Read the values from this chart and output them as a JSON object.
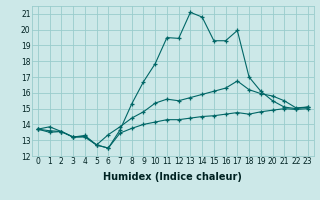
{
  "xlabel": "Humidex (Indice chaleur)",
  "xlim": [
    -0.5,
    23.5
  ],
  "ylim": [
    12,
    21.5
  ],
  "yticks": [
    12,
    13,
    14,
    15,
    16,
    17,
    18,
    19,
    20,
    21
  ],
  "xticks": [
    0,
    1,
    2,
    3,
    4,
    5,
    6,
    7,
    8,
    9,
    10,
    11,
    12,
    13,
    14,
    15,
    16,
    17,
    18,
    19,
    20,
    21,
    22,
    23
  ],
  "bg_color": "#cce8e8",
  "grid_color": "#99cccc",
  "line_color": "#006666",
  "max_line": [
    13.7,
    13.85,
    13.55,
    13.2,
    13.3,
    12.7,
    12.5,
    13.65,
    15.3,
    16.7,
    17.85,
    19.5,
    19.45,
    21.1,
    20.8,
    19.3,
    19.3,
    19.95,
    17.0,
    16.1,
    15.5,
    15.1,
    15.0,
    15.1
  ],
  "avg_line": [
    13.7,
    13.6,
    13.55,
    13.2,
    13.25,
    12.7,
    13.35,
    13.85,
    14.4,
    14.8,
    15.35,
    15.6,
    15.5,
    15.7,
    15.9,
    16.1,
    16.3,
    16.75,
    16.2,
    15.95,
    15.8,
    15.5,
    15.05,
    15.1
  ],
  "min_line": [
    13.7,
    13.5,
    13.55,
    13.2,
    13.2,
    12.7,
    12.5,
    13.45,
    13.75,
    14.0,
    14.15,
    14.3,
    14.3,
    14.4,
    14.5,
    14.55,
    14.65,
    14.75,
    14.65,
    14.8,
    14.9,
    15.0,
    14.95,
    15.0
  ],
  "marker": "+",
  "markersize": 3.0,
  "linewidth": 0.8,
  "tick_fontsize": 5.5,
  "xlabel_fontsize": 7.0
}
